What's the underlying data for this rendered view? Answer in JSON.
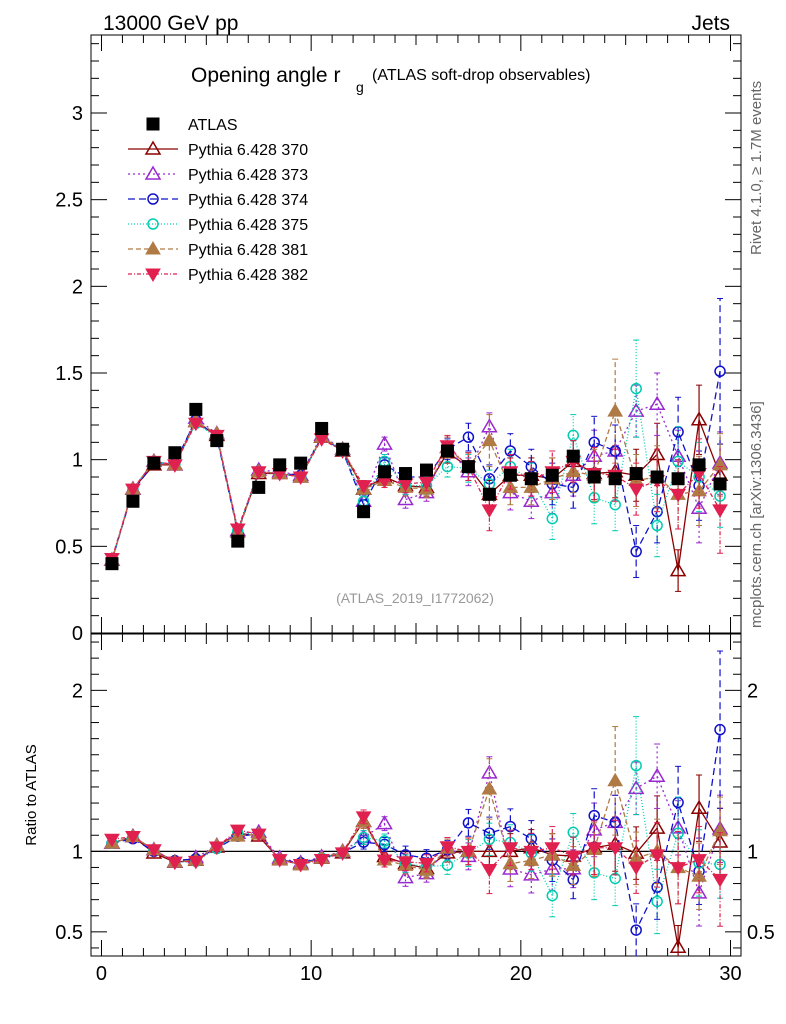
{
  "header": {
    "energy_label": "13000 GeV pp",
    "process_label": "Jets",
    "title_main": "Opening angle r",
    "title_sub": "g",
    "title_extra": "(ATLAS soft-drop observables)",
    "rivet_label": "Rivet 4.1.0, ≥ 1.7M events",
    "mcplots_label": "mcplots.cern.ch [arXiv:1306.3436]",
    "analysis_label": "(ATLAS_2019_I1772062)",
    "ratio_ylabel": "Ratio to ATLAS"
  },
  "chart_data": {
    "type": "scatter",
    "title": "Opening angle r_g (ATLAS soft-drop observables)",
    "xlabel": "",
    "ylabel": "",
    "xlim": [
      -0.5,
      30.5
    ],
    "ylim": [
      0,
      3.45
    ],
    "ratio_ylim": [
      0.35,
      2.35
    ],
    "x_ticks": [
      "0",
      "10",
      "20",
      "30"
    ],
    "y_ticks": [
      "0",
      "0.5",
      "1",
      "1.5",
      "2",
      "2.5",
      "3"
    ],
    "ratio_y_ticks": [
      "0.5",
      "1",
      "2"
    ],
    "x": [
      0.5,
      1.5,
      2.5,
      3.5,
      4.5,
      5.5,
      6.5,
      7.5,
      8.5,
      9.5,
      10.5,
      11.5,
      12.5,
      13.5,
      14.5,
      15.5,
      16.5,
      17.5,
      18.5,
      19.5,
      20.5,
      21.5,
      22.5,
      23.5,
      24.5,
      25.5,
      26.5,
      27.5,
      28.5,
      29.5
    ],
    "atlas": {
      "name": "ATLAS",
      "color": "#000000",
      "values": [
        0.4,
        0.76,
        0.98,
        1.04,
        1.29,
        1.11,
        0.53,
        0.84,
        0.97,
        0.98,
        1.18,
        1.06,
        0.7,
        0.93,
        0.92,
        0.94,
        1.05,
        0.96,
        0.8,
        0.91,
        0.89,
        0.91,
        1.02,
        0.9,
        0.89,
        0.92,
        0.9,
        0.89,
        0.97,
        0.86
      ]
    },
    "series": [
      {
        "name": "Pythia 6.428 370",
        "color": "#8b0000",
        "marker": "triangle-open",
        "dash": "",
        "values": [
          0.42,
          0.83,
          0.97,
          0.97,
          1.22,
          1.14,
          0.59,
          0.92,
          0.92,
          0.9,
          1.13,
          1.05,
          0.83,
          0.9,
          0.85,
          0.84,
          1.04,
          0.96,
          0.8,
          0.91,
          0.91,
          0.89,
          0.99,
          0.92,
          0.93,
          0.91,
          1.03,
          0.36,
          1.23,
          0.91
        ],
        "errors": [
          0.01,
          0.01,
          0.01,
          0.01,
          0.01,
          0.01,
          0.01,
          0.01,
          0.01,
          0.01,
          0.02,
          0.02,
          0.03,
          0.04,
          0.05,
          0.05,
          0.06,
          0.08,
          0.08,
          0.1,
          0.1,
          0.12,
          0.12,
          0.15,
          0.15,
          0.15,
          0.18,
          0.12,
          0.2,
          0.18
        ]
      },
      {
        "name": "Pythia 6.428 373",
        "color": "#9a28d0",
        "marker": "triangle-open",
        "dash": "2,3",
        "values": [
          0.42,
          0.83,
          0.99,
          0.97,
          1.24,
          1.15,
          0.59,
          0.94,
          0.93,
          0.91,
          1.14,
          1.06,
          0.76,
          1.09,
          0.77,
          0.81,
          1.07,
          0.93,
          1.19,
          0.81,
          0.76,
          0.81,
          0.91,
          1.02,
          1.05,
          1.28,
          1.32,
          1.02,
          0.72,
          0.98
        ],
        "errors": [
          0.01,
          0.01,
          0.01,
          0.01,
          0.01,
          0.01,
          0.01,
          0.01,
          0.01,
          0.01,
          0.02,
          0.02,
          0.03,
          0.04,
          0.05,
          0.05,
          0.06,
          0.08,
          0.08,
          0.1,
          0.1,
          0.12,
          0.12,
          0.15,
          0.15,
          0.15,
          0.18,
          0.15,
          0.2,
          0.18
        ]
      },
      {
        "name": "Pythia 6.428 374",
        "color": "#1010cc",
        "marker": "circle-open",
        "dash": "7,4",
        "values": [
          0.42,
          0.82,
          0.98,
          0.98,
          1.23,
          1.13,
          0.58,
          0.93,
          0.92,
          0.91,
          1.13,
          1.05,
          0.74,
          0.97,
          0.9,
          0.9,
          1.06,
          1.13,
          0.89,
          1.05,
          0.96,
          0.86,
          0.84,
          1.1,
          1.05,
          0.47,
          0.7,
          1.16,
          0.85,
          1.51
        ],
        "errors": [
          0.01,
          0.01,
          0.01,
          0.01,
          0.01,
          0.01,
          0.01,
          0.01,
          0.01,
          0.01,
          0.02,
          0.02,
          0.03,
          0.04,
          0.05,
          0.05,
          0.06,
          0.08,
          0.08,
          0.1,
          0.1,
          0.12,
          0.12,
          0.15,
          0.15,
          0.15,
          0.18,
          0.2,
          0.2,
          0.42
        ]
      },
      {
        "name": "Pythia 6.428 375",
        "color": "#00cdb0",
        "marker": "circle-open",
        "dash": "1,2",
        "values": [
          0.42,
          0.83,
          0.99,
          0.97,
          1.21,
          1.13,
          0.59,
          0.93,
          0.92,
          0.9,
          1.13,
          1.05,
          0.76,
          0.99,
          0.85,
          0.85,
          0.96,
          0.95,
          0.86,
          0.96,
          0.88,
          0.66,
          1.14,
          0.78,
          0.74,
          1.41,
          0.62,
          0.99,
          0.9,
          0.79
        ],
        "errors": [
          0.01,
          0.01,
          0.01,
          0.01,
          0.01,
          0.01,
          0.01,
          0.01,
          0.01,
          0.01,
          0.02,
          0.02,
          0.03,
          0.04,
          0.05,
          0.05,
          0.06,
          0.08,
          0.08,
          0.1,
          0.1,
          0.12,
          0.12,
          0.15,
          0.15,
          0.28,
          0.18,
          0.2,
          0.2,
          0.18
        ]
      },
      {
        "name": "Pythia 6.428 381",
        "color": "#b07a45",
        "marker": "triangle-filled",
        "dash": "5,3",
        "values": [
          0.42,
          0.83,
          0.99,
          0.97,
          1.22,
          1.15,
          0.58,
          0.93,
          0.92,
          0.9,
          1.13,
          1.06,
          0.83,
          0.88,
          0.84,
          0.83,
          1.07,
          0.96,
          1.11,
          0.84,
          0.84,
          0.89,
          0.93,
          0.91,
          1.28,
          0.88,
          0.9,
          0.8,
          0.82,
          0.97
        ],
        "errors": [
          0.01,
          0.01,
          0.01,
          0.01,
          0.01,
          0.01,
          0.01,
          0.01,
          0.01,
          0.01,
          0.02,
          0.02,
          0.03,
          0.04,
          0.05,
          0.05,
          0.06,
          0.08,
          0.15,
          0.1,
          0.1,
          0.12,
          0.12,
          0.15,
          0.3,
          0.15,
          0.18,
          0.2,
          0.2,
          0.18
        ]
      },
      {
        "name": "Pythia 6.428 382",
        "color": "#e0204f",
        "marker": "triangle-down-filled",
        "dash": "4,2,1,2",
        "values": [
          0.43,
          0.83,
          0.99,
          0.97,
          1.21,
          1.14,
          0.6,
          0.93,
          0.92,
          0.9,
          1.12,
          1.05,
          0.85,
          0.88,
          0.86,
          0.87,
          1.08,
          0.96,
          0.71,
          0.93,
          0.89,
          0.93,
          0.99,
          0.92,
          0.91,
          0.83,
          0.88,
          0.8,
          0.92,
          0.71
        ],
        "errors": [
          0.01,
          0.01,
          0.01,
          0.01,
          0.01,
          0.01,
          0.01,
          0.01,
          0.01,
          0.01,
          0.02,
          0.02,
          0.03,
          0.04,
          0.05,
          0.05,
          0.06,
          0.08,
          0.12,
          0.1,
          0.1,
          0.12,
          0.12,
          0.15,
          0.15,
          0.15,
          0.18,
          0.2,
          0.2,
          0.25
        ]
      }
    ]
  }
}
